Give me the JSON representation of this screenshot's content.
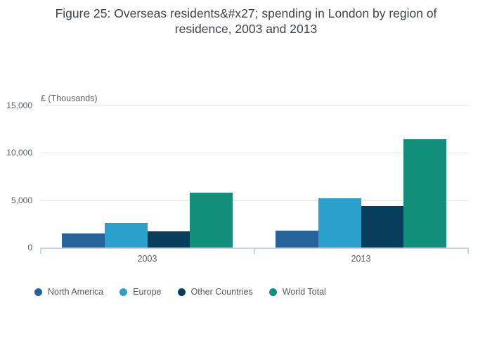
{
  "title": {
    "line1": "Figure 25: Overseas residents&#x27; spending in London by region of",
    "line2": "residence, 2003 and 2013"
  },
  "colors": {
    "north_america": "#27639b",
    "europe": "#2ba0cd",
    "other_countries": "#073e5d",
    "world_total": "#128f7c",
    "axis_line": "#c8d4e3",
    "gridline": "#e6e6e6",
    "title_text": "#3f4247",
    "tick_text": "#5b6068",
    "legend_text": "#53585f",
    "background": "#ffffff"
  },
  "chart_data": {
    "type": "bar",
    "title": "Figure 25: Overseas residents&#x27; spending in London by region of residence, 2003 and 2013",
    "ylabel": "£ (Thousands)",
    "xlabel": "",
    "categories": [
      "2003",
      "2013"
    ],
    "series": [
      {
        "name": "North America",
        "color": "#27639b",
        "values": [
          1500,
          1750
        ]
      },
      {
        "name": "Europe",
        "color": "#2ba0cd",
        "values": [
          2600,
          5200
        ]
      },
      {
        "name": "Other Countries",
        "color": "#073e5d",
        "values": [
          1700,
          4400
        ]
      },
      {
        "name": "World Total",
        "color": "#128f7c",
        "values": [
          5800,
          11400
        ]
      }
    ],
    "ylim": [
      0,
      15000
    ],
    "yticks": [
      {
        "value": 0,
        "label": "0"
      },
      {
        "value": 5000,
        "label": "5,000"
      },
      {
        "value": 10000,
        "label": "10,000"
      },
      {
        "value": 15000,
        "label": "15,000"
      }
    ],
    "grid": "horizontal-only",
    "legend_position": "bottom-left"
  }
}
